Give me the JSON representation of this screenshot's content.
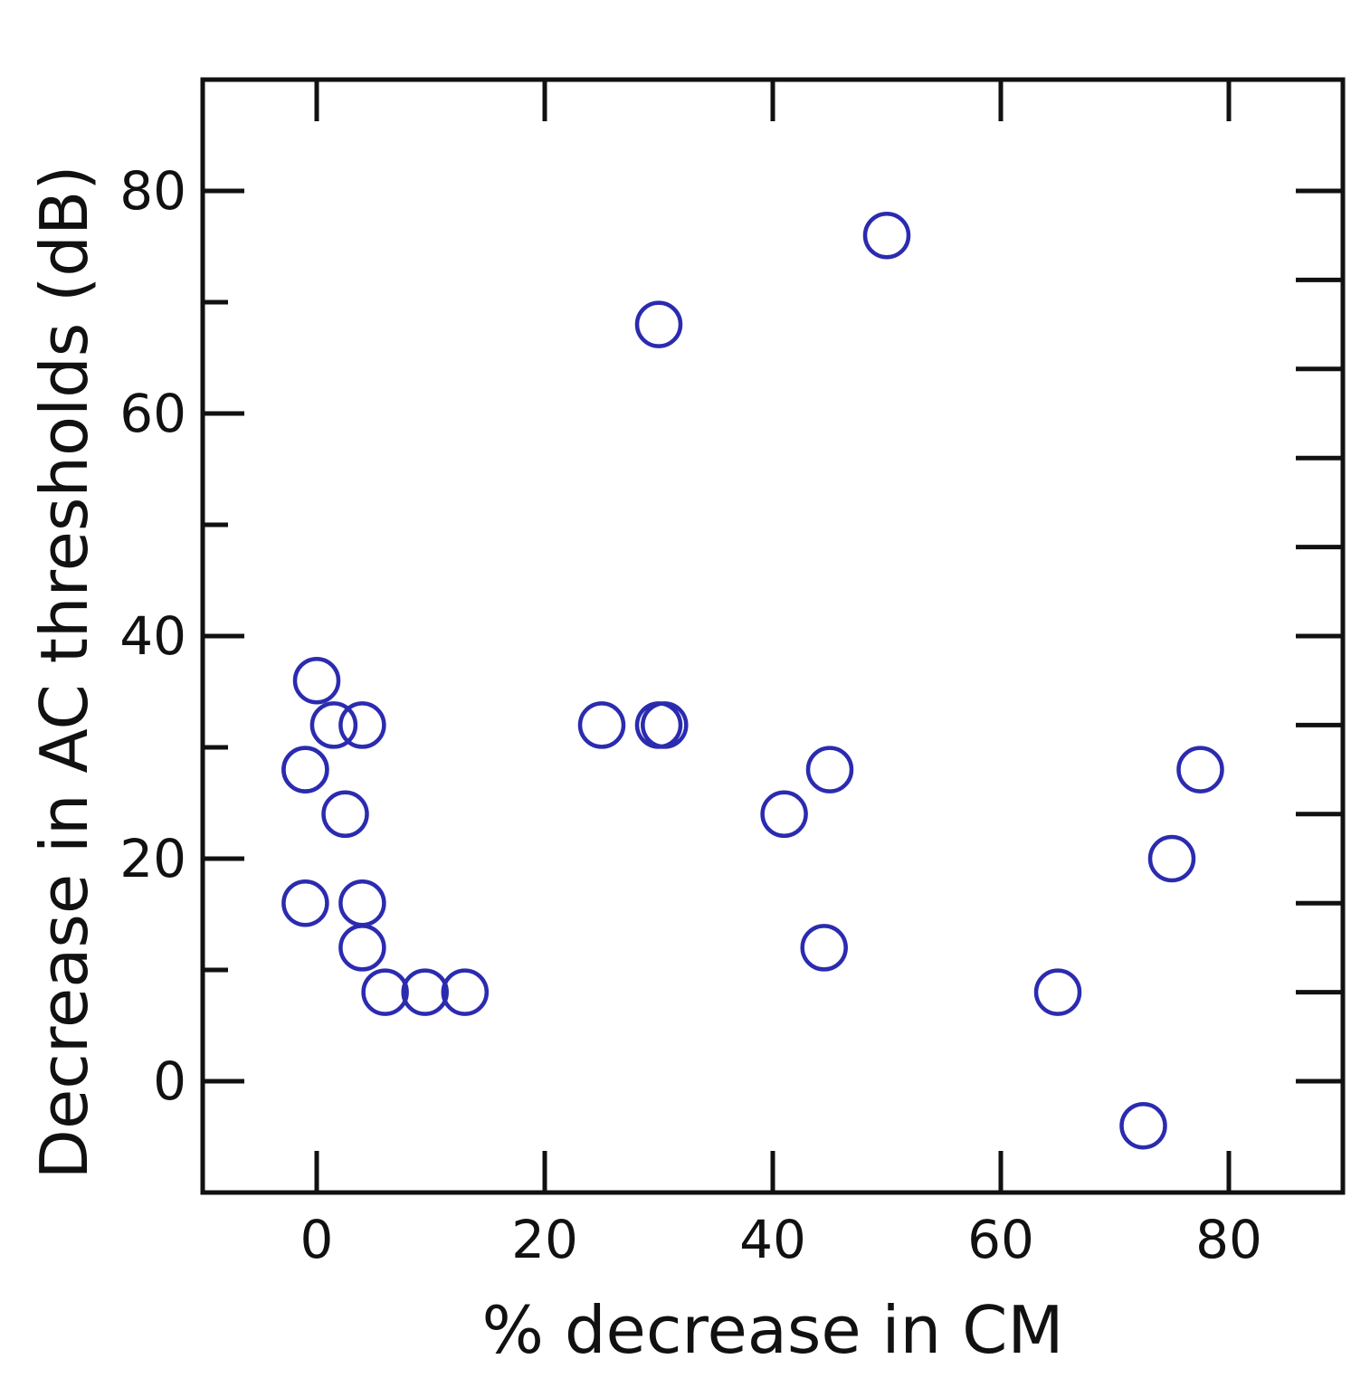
{
  "chart_data": {
    "type": "scatter",
    "title": "",
    "xlabel": "% decrease in CM",
    "ylabel": "Decrease in AC thresholds (dB)",
    "xlim": [
      -10,
      90
    ],
    "ylim": [
      -10,
      90
    ],
    "x_ticks": [
      0,
      20,
      40,
      60,
      80
    ],
    "x_tick_labels": [
      "0",
      "20",
      "40",
      "60",
      "80"
    ],
    "x_minor_ticks": [],
    "y_ticks": [
      0,
      20,
      40,
      60,
      80
    ],
    "y_tick_labels": [
      "0",
      "20",
      "40",
      "60",
      "80"
    ],
    "y_minor_ticks": [
      10,
      30,
      50,
      70
    ],
    "right_axis_ticks": [
      0,
      8,
      16,
      24,
      32,
      40,
      48,
      56,
      64,
      72,
      80
    ],
    "grid": false,
    "legend": "none",
    "marker": "open-circle",
    "marker_color": "#2b2bb0",
    "axis_color": "#111111",
    "series": [
      {
        "x": [
          0,
          -1,
          1.5,
          4,
          -1,
          2.5,
          -1,
          4,
          4,
          6,
          9.5,
          13,
          25,
          30,
          30.5,
          30,
          50,
          41,
          45,
          44.5,
          65,
          72.5,
          75,
          77.5
        ],
        "y": [
          36,
          28,
          32,
          32,
          28,
          24,
          16,
          16,
          12,
          8,
          8,
          8,
          32,
          32,
          32,
          68,
          76,
          24,
          28,
          12,
          8,
          -4,
          20,
          28
        ]
      }
    ]
  }
}
